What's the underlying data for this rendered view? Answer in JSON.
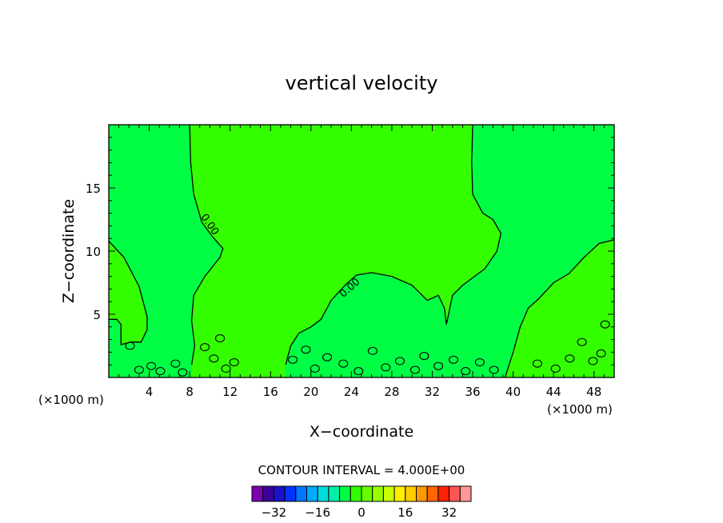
{
  "chart_data": {
    "type": "heatmap",
    "title": "vertical velocity",
    "xlabel": "X−coordinate",
    "ylabel": "Z−coordinate",
    "x_unit_left": "(×1000 m)",
    "x_unit_right": "(×1000 m)",
    "xlim": [
      0,
      50
    ],
    "ylim": [
      0,
      20
    ],
    "xticks": [
      4,
      8,
      12,
      16,
      20,
      24,
      28,
      32,
      36,
      40,
      44,
      48
    ],
    "xtick_labels": [
      "4",
      "8",
      "12",
      "16",
      "20",
      "24",
      "28",
      "32",
      "36",
      "40",
      "44",
      "48"
    ],
    "yticks": [
      5,
      10,
      15
    ],
    "ytick_labels": [
      "5",
      "10",
      "15"
    ],
    "contour_label": "0.00",
    "contour_interval_text": "CONTOUR INTERVAL = 4.000E+00",
    "colorbar": {
      "colors": [
        "#7a00b0",
        "#3a0099",
        "#1a10c8",
        "#0033ff",
        "#0077ff",
        "#00aaff",
        "#00dddd",
        "#00eeaa",
        "#00ff44",
        "#33ff00",
        "#66ff00",
        "#99ff00",
        "#ccff00",
        "#ffee00",
        "#ffcc00",
        "#ff9900",
        "#ff6600",
        "#ff2200",
        "#ff5555",
        "#ff9999"
      ],
      "tick_values": [
        -32,
        -16,
        0,
        16,
        32
      ],
      "tick_labels": [
        "−32",
        "−16",
        "0",
        "16",
        "32"
      ],
      "min": -40,
      "max": 40
    },
    "regions": [
      {
        "level": "0 to 4",
        "color": "#33ff00"
      },
      {
        "level": "-4 to 0",
        "color": "#00ff44"
      }
    ],
    "zero_contour": {
      "left_boundary": [
        [
          0,
          10.8
        ],
        [
          1.5,
          9.5
        ],
        [
          3,
          7.2
        ],
        [
          3.8,
          4.8
        ],
        [
          3.8,
          3.8
        ],
        [
          3.2,
          2.8
        ],
        [
          2.8,
          2.8
        ],
        [
          2.2,
          2.8
        ],
        [
          1.2,
          2.6
        ],
        [
          1.2,
          4.2
        ],
        [
          0.8,
          4.6
        ],
        [
          0,
          4.6
        ]
      ],
      "central_upward": [
        [
          8,
          20
        ],
        [
          8.1,
          17
        ],
        [
          8.4,
          14.5
        ],
        [
          9.2,
          12.3
        ],
        [
          10.2,
          11.2
        ],
        [
          11.3,
          10.2
        ],
        [
          11,
          9.5
        ],
        [
          9.5,
          8
        ],
        [
          8.4,
          6.5
        ],
        [
          8.2,
          4.5
        ],
        [
          8.5,
          2.5
        ],
        [
          8.2,
          1
        ]
      ],
      "right_region": [
        [
          36,
          20
        ],
        [
          35.9,
          17
        ],
        [
          36,
          14.5
        ],
        [
          37,
          13
        ],
        [
          38,
          12.5
        ],
        [
          38.8,
          11.4
        ],
        [
          38.4,
          10
        ],
        [
          37.2,
          8.6
        ],
        [
          35,
          7.3
        ],
        [
          34,
          6.5
        ],
        [
          33.4,
          4.2
        ],
        [
          33.2,
          5.5
        ],
        [
          32.6,
          6.5
        ],
        [
          31.5,
          6.1
        ],
        [
          30,
          7.3
        ],
        [
          28,
          8
        ],
        [
          26,
          8.3
        ],
        [
          24.5,
          8.1
        ],
        [
          23.5,
          7.4
        ],
        [
          22,
          6.1
        ],
        [
          21,
          4.6
        ],
        [
          20,
          4
        ],
        [
          18.8,
          3.5
        ],
        [
          18,
          2.5
        ],
        [
          17.5,
          1
        ]
      ],
      "right_lower": [
        [
          50,
          10.9
        ],
        [
          48.5,
          10.6
        ],
        [
          47,
          9.5
        ],
        [
          45.5,
          8.2
        ],
        [
          44,
          7.5
        ],
        [
          42.5,
          6.2
        ],
        [
          41.5,
          5.5
        ],
        [
          40.7,
          4
        ],
        [
          40,
          2
        ],
        [
          39.2,
          0
        ]
      ]
    }
  }
}
